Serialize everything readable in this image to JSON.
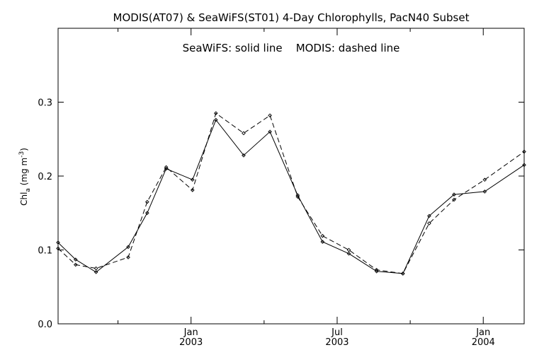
{
  "chart_data": {
    "type": "line",
    "title": "MODIS(AT07) & SeaWiFS(ST01) 4-Day Chlorophylls, PacN40 Subset",
    "subtitle": "SeaWiFS: solid line    MODIS: dashed line",
    "ylabel": {
      "main": "Chl",
      "sub": "a",
      "units_open": " (mg m",
      "units_sup": "-3",
      "units_close": ")"
    },
    "xlabel": "",
    "x_units": "months since Jan 2003",
    "xlim": [
      -9.1,
      22.8
    ],
    "ylim": [
      0.0,
      0.4
    ],
    "yticks": [
      {
        "value": 0.0,
        "label": "0.0"
      },
      {
        "value": 0.1,
        "label": "0.1"
      },
      {
        "value": 0.2,
        "label": "0.2"
      },
      {
        "value": 0.3,
        "label": "0.3"
      }
    ],
    "xticks_major": [
      {
        "value": 0,
        "label": "Jan",
        "year": "2003"
      },
      {
        "value": 10,
        "label": "Jul",
        "year": "2003"
      },
      {
        "value": 20,
        "label": "Jan",
        "year": "2004"
      }
    ],
    "xticks_minor": [
      -5,
      5,
      15
    ],
    "grid": false,
    "series": [
      {
        "name": "SeaWiFS",
        "style": "solid",
        "color": "#000000",
        "points": [
          [
            -9.1,
            0.11
          ],
          [
            -7.9,
            0.087
          ],
          [
            -6.5,
            0.07
          ],
          [
            -4.3,
            0.104
          ],
          [
            -3.0,
            0.15
          ],
          [
            -1.7,
            0.21
          ],
          [
            0.1,
            0.195
          ],
          [
            1.7,
            0.276
          ],
          [
            3.6,
            0.228
          ],
          [
            5.4,
            0.26
          ],
          [
            7.3,
            0.174
          ],
          [
            9.0,
            0.111
          ],
          [
            10.8,
            0.095
          ],
          [
            12.7,
            0.071
          ],
          [
            14.5,
            0.068
          ],
          [
            16.3,
            0.146
          ],
          [
            18.0,
            0.175
          ],
          [
            20.1,
            0.179
          ],
          [
            22.8,
            0.215
          ]
        ]
      },
      {
        "name": "MODIS",
        "style": "dashed",
        "color": "#000000",
        "points": [
          [
            -9.1,
            0.102
          ],
          [
            -7.9,
            0.08
          ],
          [
            -6.5,
            0.075
          ],
          [
            -4.3,
            0.09
          ],
          [
            -3.0,
            0.165
          ],
          [
            -1.7,
            0.212
          ],
          [
            0.1,
            0.181
          ],
          [
            1.7,
            0.285
          ],
          [
            3.6,
            0.258
          ],
          [
            5.4,
            0.282
          ],
          [
            7.3,
            0.172
          ],
          [
            9.0,
            0.119
          ],
          [
            10.8,
            0.1
          ],
          [
            12.7,
            0.073
          ],
          [
            14.5,
            0.068
          ],
          [
            16.3,
            0.136
          ],
          [
            18.0,
            0.168
          ],
          [
            20.1,
            0.195
          ],
          [
            22.8,
            0.233
          ]
        ]
      }
    ]
  }
}
